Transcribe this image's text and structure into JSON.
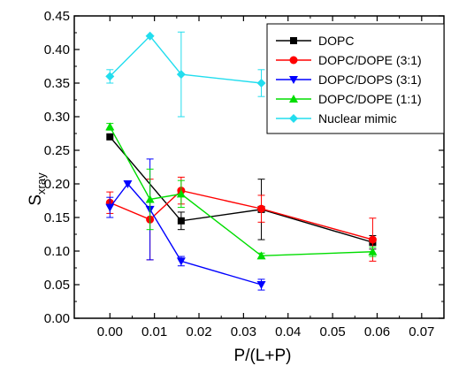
{
  "chart_data": {
    "type": "line",
    "xlabel": "P/(L+P)",
    "ylabel": "S",
    "ylabel_sub": "xray",
    "xlim": [
      -0.008,
      0.075
    ],
    "ylim": [
      0.0,
      0.45
    ],
    "xticks": [
      0.0,
      0.01,
      0.02,
      0.03,
      0.04,
      0.05,
      0.06,
      0.07
    ],
    "xtick_labels": [
      "0.00",
      "0.01",
      "0.02",
      "0.03",
      "0.04",
      "0.05",
      "0.06",
      "0.07"
    ],
    "yticks": [
      0.0,
      0.05,
      0.1,
      0.15,
      0.2,
      0.25,
      0.3,
      0.35,
      0.4,
      0.45
    ],
    "ytick_labels": [
      "0.00",
      "0.05",
      "0.10",
      "0.15",
      "0.20",
      "0.25",
      "0.30",
      "0.35",
      "0.40",
      "0.45"
    ],
    "legend_position": "top-right",
    "grid": false,
    "series": [
      {
        "name": "DOPC",
        "color": "#000000",
        "marker": "square",
        "x": [
          0.0,
          0.016,
          0.034,
          0.059
        ],
        "y": [
          0.27,
          0.145,
          0.162,
          0.113
        ],
        "err": [
          0.0,
          0.013,
          0.045,
          0.01
        ]
      },
      {
        "name": "DOPC/DOPE (3:1)",
        "color": "#ff0000",
        "marker": "circle",
        "x": [
          0.0,
          0.009,
          0.016,
          0.034,
          0.059
        ],
        "y": [
          0.172,
          0.147,
          0.19,
          0.163,
          0.117
        ],
        "err": [
          0.016,
          0.06,
          0.02,
          0.02,
          0.032
        ]
      },
      {
        "name": "DOPC/DOPS (3:1)",
        "color": "#0000ff",
        "marker": "triangle-down",
        "x": [
          0.0,
          0.004,
          0.009,
          0.016,
          0.034
        ],
        "y": [
          0.165,
          0.2,
          0.162,
          0.085,
          0.05
        ],
        "err": [
          0.015,
          0.0,
          0.075,
          0.007,
          0.008
        ]
      },
      {
        "name": "DOPC/DOPE (1:1)",
        "color": "#00dd00",
        "marker": "triangle-up",
        "x": [
          0.0,
          0.009,
          0.016,
          0.034,
          0.059
        ],
        "y": [
          0.285,
          0.177,
          0.185,
          0.093,
          0.099
        ],
        "err": [
          0.005,
          0.045,
          0.02,
          0.004,
          0.007
        ]
      },
      {
        "name": "Nuclear mimic",
        "color": "#22ddee",
        "marker": "diamond",
        "x": [
          0.0,
          0.009,
          0.016,
          0.034
        ],
        "y": [
          0.36,
          0.42,
          0.363,
          0.35
        ],
        "err": [
          0.01,
          0.0,
          0.063,
          0.02
        ]
      }
    ]
  }
}
